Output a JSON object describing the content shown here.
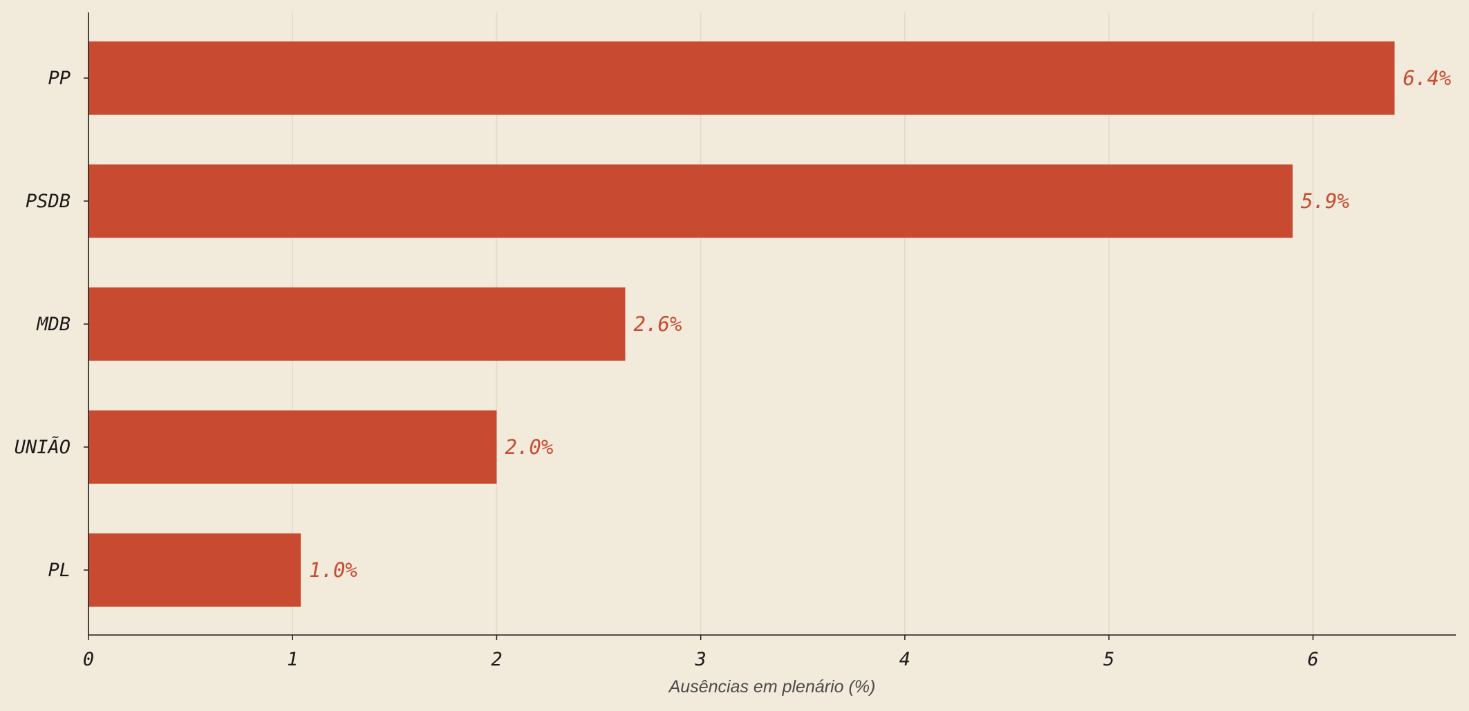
{
  "chart_data": {
    "type": "bar",
    "orientation": "horizontal",
    "categories": [
      "PP",
      "PSDB",
      "MDB",
      "UNIÃO",
      "PL"
    ],
    "values": [
      6.4,
      5.9,
      2.63,
      2.0,
      1.04
    ],
    "value_labels": [
      "6.4%",
      "5.9%",
      "2.6%",
      "2.0%",
      "1.0%"
    ],
    "xlabel": "Ausências em plenário (%)",
    "ylabel": "",
    "xlim": [
      0,
      6.7
    ],
    "xticks": [
      0,
      1,
      2,
      3,
      4,
      5,
      6
    ],
    "grid": "vertical",
    "colors": {
      "bar": "#c84b31",
      "value_label": "#c84b31",
      "background": "#f2eada",
      "grid": "#e2dac9",
      "axis": "#1a1a1a"
    }
  }
}
